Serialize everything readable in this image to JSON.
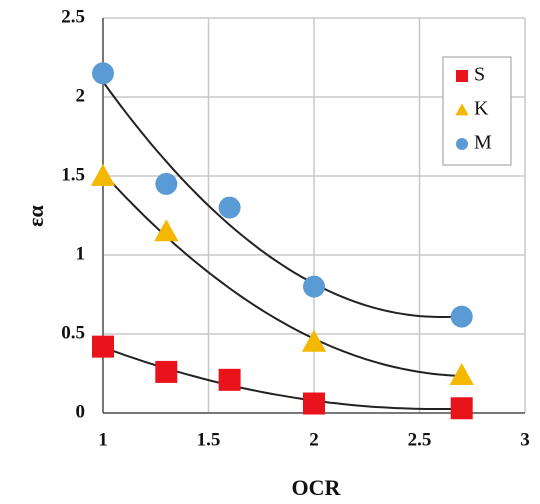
{
  "chart_data": {
    "type": "scatter",
    "x_label": "OCR",
    "y_label": "εα",
    "xlim": [
      1,
      3
    ],
    "ylim": [
      0,
      2.5
    ],
    "xticks": [
      1,
      1.5,
      2,
      2.5,
      3
    ],
    "yticks": [
      0,
      0.5,
      1,
      1.5,
      2,
      2.5
    ],
    "grid": true,
    "trendline": true,
    "legend": "upper right",
    "series": [
      {
        "name": "S",
        "color": "#e8131b",
        "marker": "square",
        "x": [
          1,
          1.3,
          1.6,
          2,
          2.7
        ],
        "values": [
          0.42,
          0.26,
          0.21,
          0.06,
          0.03
        ]
      },
      {
        "name": "K",
        "color": "#f5b800",
        "marker": "triangle",
        "x": [
          1,
          1.3,
          2,
          2.7
        ],
        "values": [
          1.5,
          1.15,
          0.45,
          0.24
        ]
      },
      {
        "name": "M",
        "color": "#5b9bd5",
        "marker": "circle",
        "x": [
          1,
          1.3,
          1.6,
          2,
          2.7
        ],
        "values": [
          2.15,
          1.45,
          1.3,
          0.8,
          0.61
        ]
      }
    ]
  }
}
